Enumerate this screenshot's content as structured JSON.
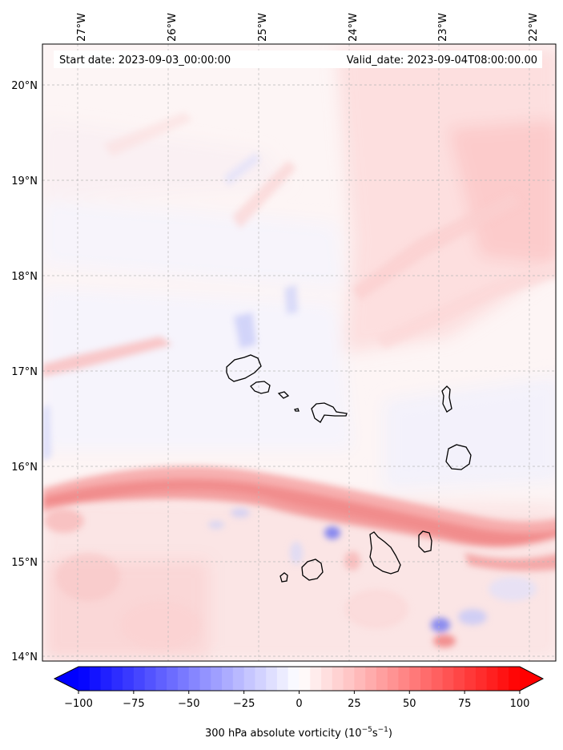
{
  "map": {
    "header": {
      "start_date": "Start date: 2023-09-03_00:00:00",
      "valid_date": "Valid_date: 2023-09-04T08:00:00.00"
    },
    "lon_ticks": [
      "27°W",
      "26°W",
      "25°W",
      "24°W",
      "23°W",
      "22°W"
    ],
    "lat_ticks": [
      "20°N",
      "19°N",
      "18°N",
      "17°N",
      "16°N",
      "15°N",
      "14°N"
    ],
    "extent": {
      "lon_min": -27.4,
      "lon_max": -21.75,
      "lat_min": 13.95,
      "lat_max": 20.4
    },
    "colorbar": {
      "label": "300 hPa absolute vorticity (10",
      "label_exp1": "−5",
      "label_mid": "s",
      "label_exp2": "−1",
      "label_end": ")",
      "ticks": [
        "−100",
        "−75",
        "−50",
        "−25",
        "0",
        "25",
        "50",
        "75",
        "100"
      ],
      "min": -100,
      "max": 100,
      "colormap": "bwr",
      "extend": "both"
    },
    "islands": [
      "Santo Antão",
      "São Vicente",
      "Santa Luzia",
      "São Nicolau",
      "Sal",
      "Boa Vista",
      "Maio",
      "Santiago",
      "Fogo",
      "Brava"
    ],
    "colors": {
      "negative": "#0000ff",
      "neutral": "#ffffff",
      "positive": "#ff0000",
      "grid": "#b0b0b0",
      "coast": "#000000"
    }
  }
}
